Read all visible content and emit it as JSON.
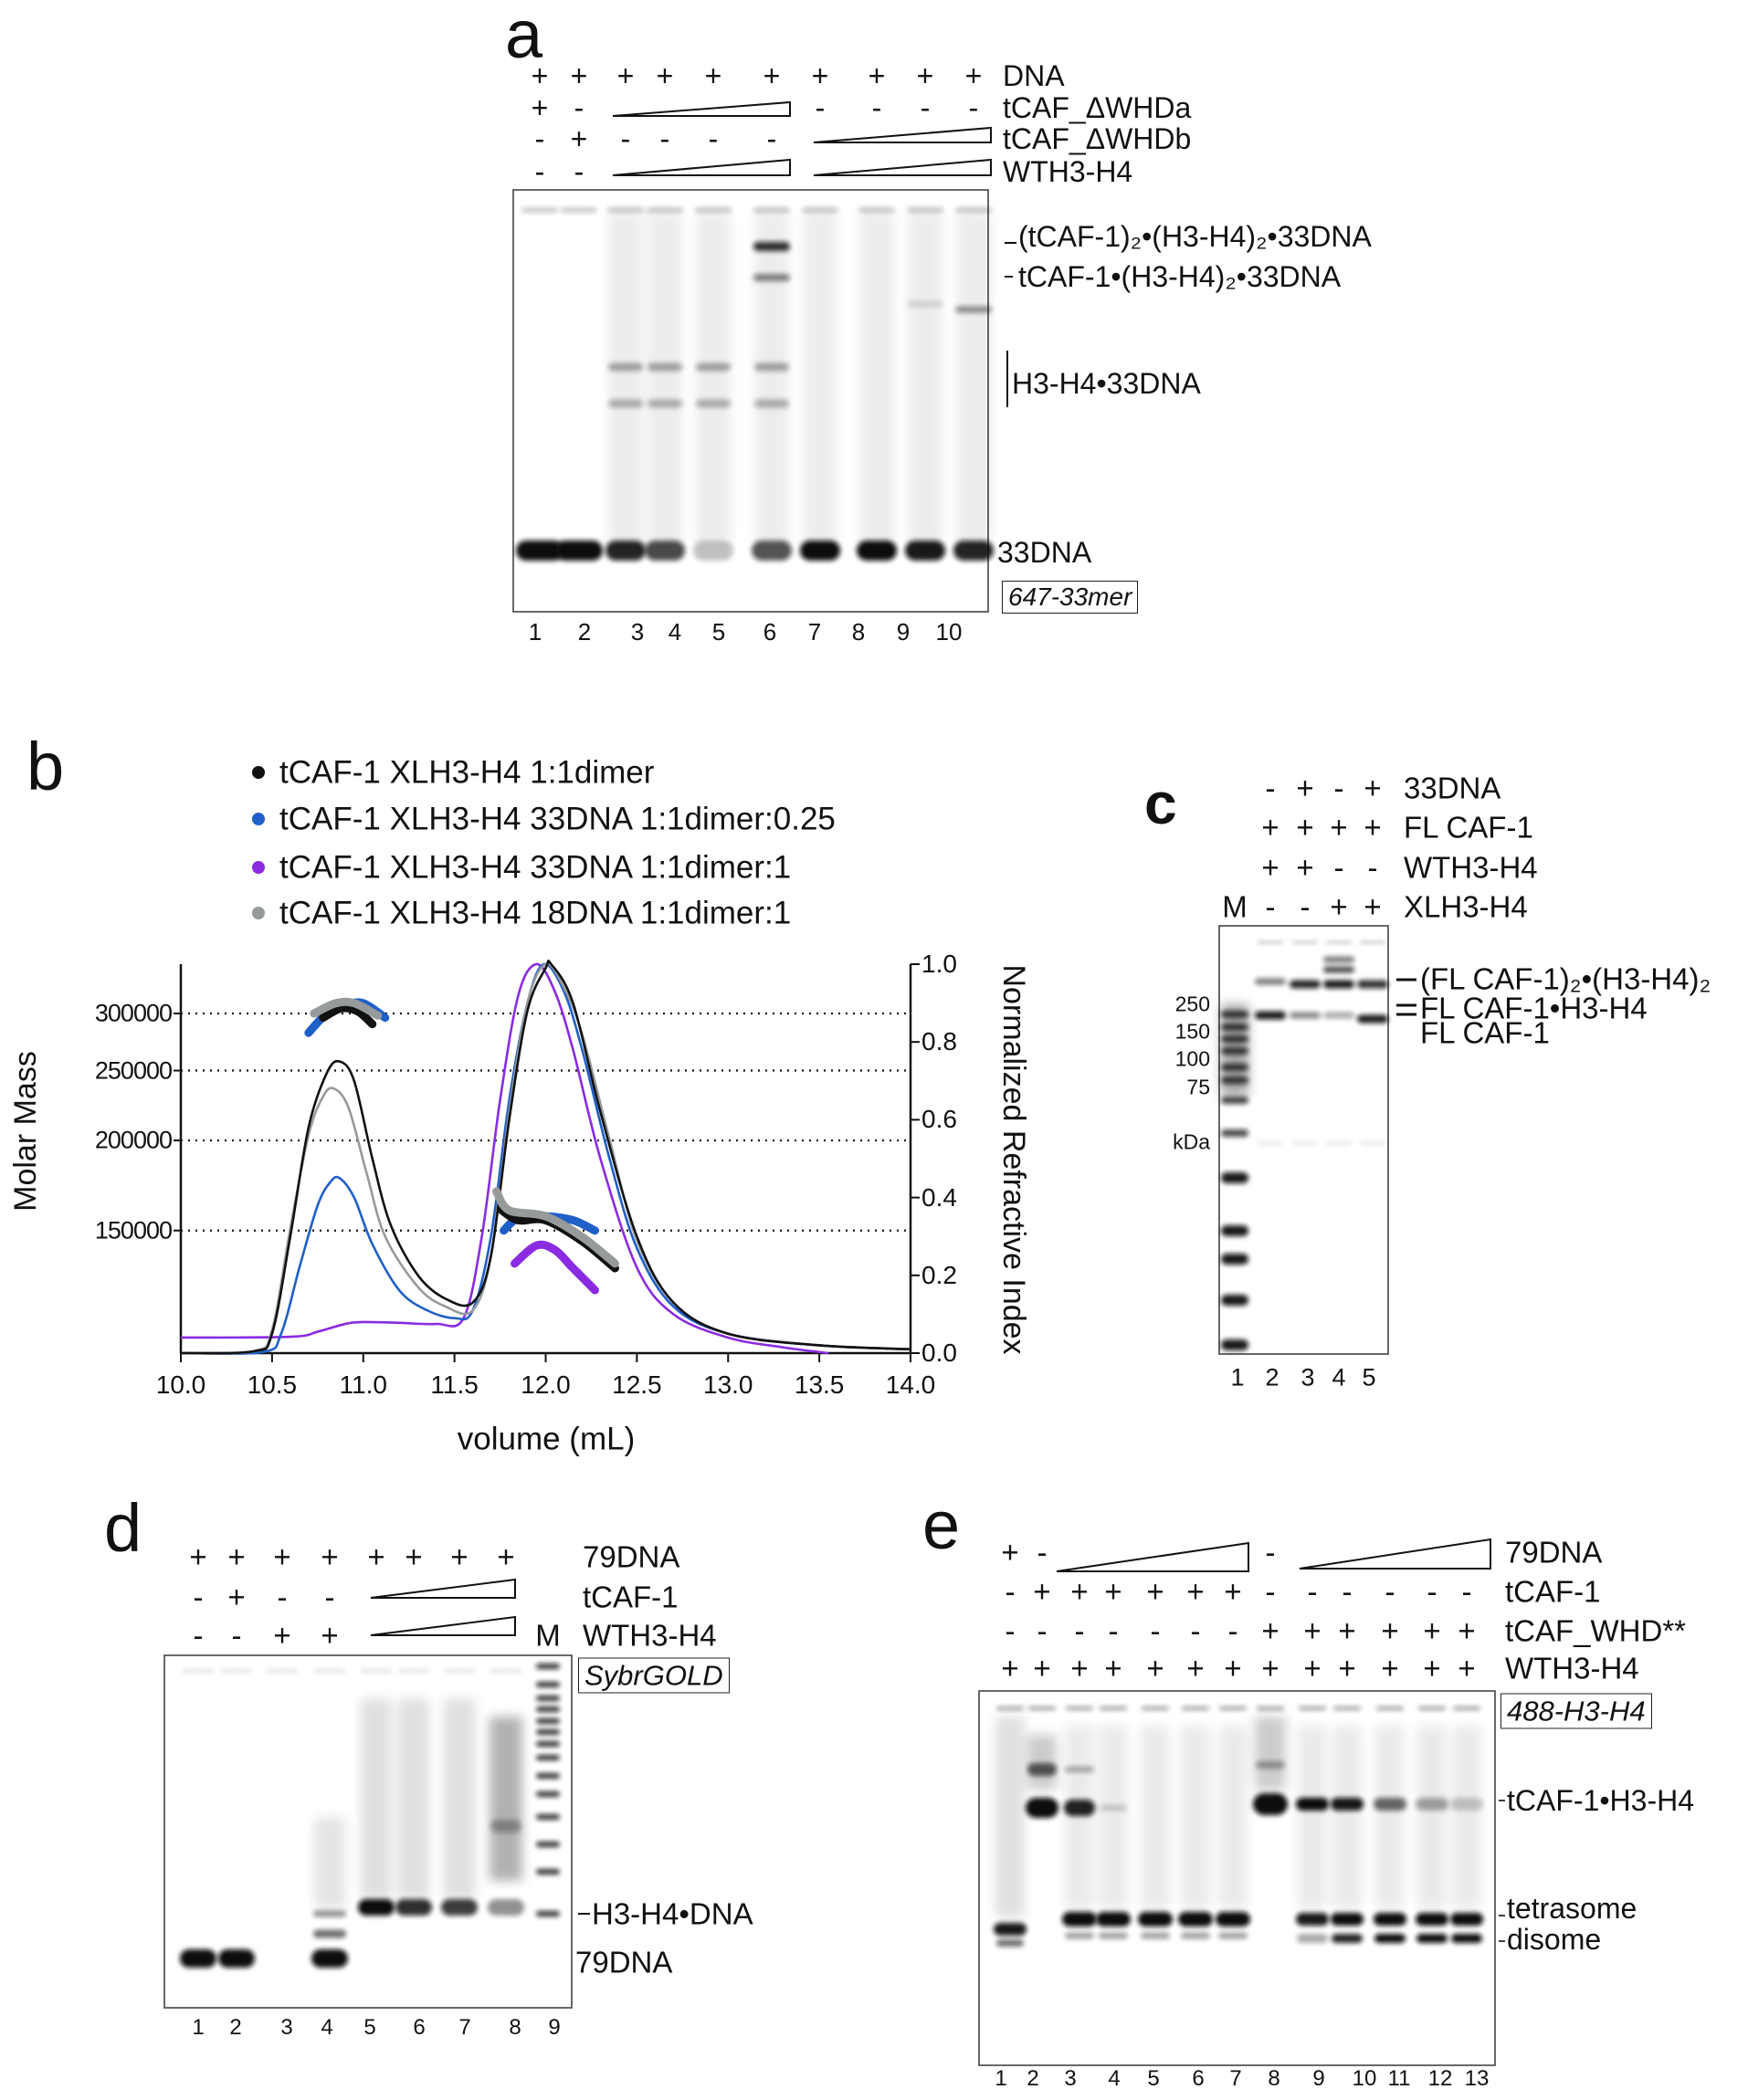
{
  "panels": {
    "a": {
      "letter": "a",
      "rows": [
        {
          "label": "DNA",
          "signs": [
            "+",
            "+",
            "+",
            "+",
            "+",
            "+",
            "+",
            "+",
            "+",
            "+"
          ]
        },
        {
          "label": "tCAF_ΔWHDa",
          "signs": [
            "+",
            "-",
            null,
            null,
            null,
            null,
            "-",
            "-",
            "-",
            "-"
          ]
        },
        {
          "label": "tCAF_ΔWHDb",
          "signs": [
            "-",
            "+",
            "-",
            "-",
            "-",
            "-",
            null,
            null,
            null,
            null
          ]
        },
        {
          "label": "WTH3-H4",
          "signs": [
            "-",
            "-",
            null,
            null,
            null,
            null,
            null,
            null,
            null,
            null
          ]
        }
      ],
      "wedges": [
        {
          "row": 1,
          "lanes": [
            3,
            6
          ]
        },
        {
          "row": 2,
          "lanes": [
            7,
            10
          ]
        },
        {
          "row": 3,
          "lanes": [
            3,
            6
          ]
        },
        {
          "row": 3,
          "lanes": [
            7,
            10
          ]
        }
      ],
      "lanes": [
        "1",
        "2",
        "3",
        "4",
        "5",
        "6",
        "7",
        "8",
        "9",
        "10"
      ],
      "band_labels": [
        "(tCAF-1)₂•(H3-H4)₂•33DNA",
        "tCAF-1•(H3-H4)₂•33DNA",
        "H3-H4•33DNA",
        "33DNA"
      ],
      "stain_label": "647-33mer"
    },
    "b": {
      "letter": "b",
      "legend": [
        {
          "label": "tCAF-1 XLH3-H4 1:1dimer",
          "color": "#111111"
        },
        {
          "label": "tCAF-1 XLH3-H4 33DNA 1:1dimer:0.25",
          "color": "#1f5fc8"
        },
        {
          "label": "tCAF-1 XLH3-H4 33DNA 1:1dimer:1",
          "color": "#8a2be2"
        },
        {
          "label": "tCAF-1 XLH3-H4 18DNA 1:1dimer:1",
          "color": "#969a9a"
        }
      ]
    },
    "c": {
      "letter": "c",
      "rows": [
        {
          "label": "33DNA",
          "signs": [
            null,
            "-",
            "+",
            "-",
            "+"
          ]
        },
        {
          "label": "FL CAF-1",
          "signs": [
            null,
            "+",
            "+",
            "+",
            "+"
          ]
        },
        {
          "label": "WTH3-H4",
          "signs": [
            null,
            "+",
            "+",
            "-",
            "-"
          ]
        },
        {
          "label": "XLH3-H4",
          "signs": [
            "M",
            "-",
            "-",
            "+",
            "+"
          ]
        }
      ],
      "lanes": [
        "1",
        "2",
        "3",
        "4",
        "5"
      ],
      "mw_markers": [
        "250",
        "150",
        "100",
        "75"
      ],
      "mw_unit": "kDa",
      "band_labels": [
        "(FL CAF-1)₂•(H3-H4)₂",
        "FL CAF-1•H3-H4",
        "FL CAF-1"
      ]
    },
    "d": {
      "letter": "d",
      "rows": [
        {
          "label": "79DNA",
          "signs": [
            "+",
            "+",
            "+",
            "+",
            "+",
            "+",
            "+",
            "+",
            null
          ]
        },
        {
          "label": "tCAF-1",
          "signs": [
            "-",
            "+",
            "-",
            "-",
            null,
            null,
            null,
            null,
            null
          ]
        },
        {
          "label": "WTH3-H4",
          "signs": [
            "-",
            "-",
            "+",
            "+",
            null,
            null,
            null,
            null,
            "M"
          ]
        }
      ],
      "wedges": [
        {
          "row": 1,
          "lanes": [
            5,
            8
          ]
        },
        {
          "row": 2,
          "lanes": [
            5,
            8
          ]
        }
      ],
      "lanes": [
        "1",
        "2",
        "3",
        "4",
        "5",
        "6",
        "7",
        "8",
        "9"
      ],
      "band_labels": [
        "H3-H4•DNA",
        "79DNA"
      ],
      "stain_label": "SybrGOLD"
    },
    "e": {
      "letter": "e",
      "rows": [
        {
          "label": "79DNA",
          "signs": [
            "+",
            "-",
            null,
            null,
            null,
            null,
            null,
            "-",
            null,
            null,
            null,
            null,
            null
          ]
        },
        {
          "label": "tCAF-1",
          "signs": [
            "-",
            "+",
            "+",
            "+",
            "+",
            "+",
            "+",
            "-",
            "-",
            "-",
            "-",
            "-",
            "-"
          ]
        },
        {
          "label": "tCAF_WHD**",
          "signs": [
            "-",
            "-",
            "-",
            "-",
            "-",
            "-",
            "-",
            "+",
            "+",
            "+",
            "+",
            "+",
            "+"
          ]
        },
        {
          "label": "WTH3-H4",
          "signs": [
            "+",
            "+",
            "+",
            "+",
            "+",
            "+",
            "+",
            "+",
            "+",
            "+",
            "+",
            "+",
            "+"
          ]
        }
      ],
      "wedges": [
        {
          "row": 0,
          "lanes": [
            3,
            7
          ]
        },
        {
          "row": 0,
          "lanes": [
            9,
            13
          ]
        }
      ],
      "lanes": [
        "1",
        "2",
        "3",
        "4",
        "5",
        "6",
        "7",
        "8",
        "9",
        "10",
        "11",
        "12",
        "13"
      ],
      "band_labels": [
        "tCAF-1•H3-H4",
        "tetrasome",
        "disome"
      ],
      "stain_label": "488-H3-H4"
    }
  },
  "chart_data": {
    "type": "line",
    "title": "",
    "xlabel": "volume (mL)",
    "ylabel": "Molar Mass",
    "y2label": "Normalized Refractive Index",
    "xlim": [
      10.0,
      14.0
    ],
    "y2lim": [
      0.0,
      1.0
    ],
    "y_scale": "log",
    "x_ticks": [
      "10.0",
      "10.5",
      "11.0",
      "11.5",
      "12.0",
      "12.5",
      "13.0",
      "13.5",
      "14.0"
    ],
    "y_ticks": [
      "300000",
      "250000",
      "200000",
      "150000"
    ],
    "y_tick_values": [
      300000,
      250000,
      200000,
      150000
    ],
    "y2_ticks": [
      "1.0",
      "0.8",
      "0.6",
      "0.4",
      "0.2",
      "0.0"
    ],
    "y2_tick_values": [
      1.0,
      0.8,
      0.6,
      0.4,
      0.2,
      0.0
    ],
    "grid": "dotted horizontal at molar mass ticks",
    "legend_position": "top",
    "series": [
      {
        "name": "tCAF-1 XLH3-H4 1:1dimer",
        "color": "#111111",
        "ri": [
          [
            10.0,
            0
          ],
          [
            10.4,
            0.005
          ],
          [
            10.5,
            0.05
          ],
          [
            10.6,
            0.3
          ],
          [
            10.7,
            0.58
          ],
          [
            10.8,
            0.72
          ],
          [
            10.87,
            0.75
          ],
          [
            10.95,
            0.7
          ],
          [
            11.05,
            0.5
          ],
          [
            11.15,
            0.33
          ],
          [
            11.3,
            0.2
          ],
          [
            11.45,
            0.14
          ],
          [
            11.6,
            0.13
          ],
          [
            11.7,
            0.25
          ],
          [
            11.8,
            0.6
          ],
          [
            11.9,
            0.88
          ],
          [
            12.0,
            0.99
          ],
          [
            12.03,
            1.0
          ],
          [
            12.15,
            0.9
          ],
          [
            12.3,
            0.62
          ],
          [
            12.5,
            0.3
          ],
          [
            12.7,
            0.13
          ],
          [
            13.0,
            0.05
          ],
          [
            13.5,
            0.02
          ],
          [
            14.0,
            0.01
          ]
        ],
        "mass": [
          [
            [
              10.78,
              296000
            ],
            [
              10.88,
              305000
            ],
            [
              10.97,
              302000
            ],
            [
              11.05,
              290000
            ]
          ],
          [
            [
              11.76,
              160000
            ],
            [
              11.85,
              155000
            ],
            [
              12.0,
              155000
            ],
            [
              12.2,
              145000
            ],
            [
              12.38,
              133000
            ]
          ]
        ]
      },
      {
        "name": "tCAF-1 XLH3-H4 33DNA 1:1dimer:0.25",
        "color": "#1f5fc8",
        "ri": [
          [
            10.0,
            0
          ],
          [
            10.45,
            0.003
          ],
          [
            10.55,
            0.05
          ],
          [
            10.65,
            0.22
          ],
          [
            10.75,
            0.38
          ],
          [
            10.82,
            0.44
          ],
          [
            10.87,
            0.45
          ],
          [
            10.95,
            0.4
          ],
          [
            11.05,
            0.28
          ],
          [
            11.2,
            0.16
          ],
          [
            11.35,
            0.11
          ],
          [
            11.5,
            0.09
          ],
          [
            11.6,
            0.11
          ],
          [
            11.7,
            0.3
          ],
          [
            11.8,
            0.65
          ],
          [
            11.9,
            0.9
          ],
          [
            11.99,
            1.0
          ],
          [
            12.1,
            0.93
          ],
          [
            12.2,
            0.78
          ],
          [
            12.35,
            0.5
          ],
          [
            12.5,
            0.27
          ],
          [
            12.7,
            0.12
          ],
          [
            13.0,
            0.05
          ],
          [
            13.5,
            0.02
          ],
          [
            14.0,
            0.01
          ]
        ],
        "mass": [
          [
            [
              10.7,
              282000
            ],
            [
              10.8,
              300000
            ],
            [
              10.9,
              308000
            ],
            [
              11.0,
              310000
            ],
            [
              11.12,
              296000
            ]
          ],
          [
            [
              11.77,
              150000
            ],
            [
              11.85,
              156000
            ],
            [
              12.0,
              157000
            ],
            [
              12.15,
              155000
            ],
            [
              12.27,
              150000
            ]
          ]
        ]
      },
      {
        "name": "tCAF-1 XLH3-H4 33DNA 1:1dimer:1",
        "color": "#8a2be2",
        "ri": [
          [
            10.0,
            0.04
          ],
          [
            10.6,
            0.042
          ],
          [
            10.75,
            0.055
          ],
          [
            10.9,
            0.075
          ],
          [
            11.0,
            0.08
          ],
          [
            11.2,
            0.078
          ],
          [
            11.4,
            0.075
          ],
          [
            11.55,
            0.09
          ],
          [
            11.65,
            0.3
          ],
          [
            11.75,
            0.65
          ],
          [
            11.85,
            0.92
          ],
          [
            11.95,
            1.0
          ],
          [
            12.05,
            0.93
          ],
          [
            12.15,
            0.78
          ],
          [
            12.3,
            0.5
          ],
          [
            12.5,
            0.22
          ],
          [
            12.7,
            0.1
          ],
          [
            13.0,
            0.04
          ],
          [
            13.3,
            0.015
          ],
          [
            13.55,
            0.0
          ]
        ],
        "mass": [
          [
            [
              11.83,
              135000
            ],
            [
              11.95,
              143000
            ],
            [
              12.05,
              141000
            ],
            [
              12.15,
              133000
            ],
            [
              12.27,
              124000
            ]
          ]
        ]
      },
      {
        "name": "tCAF-1 XLH3-H4 18DNA 1:1dimer:1",
        "color": "#969a9a",
        "ri": [
          [
            10.0,
            0
          ],
          [
            10.4,
            0.005
          ],
          [
            10.5,
            0.06
          ],
          [
            10.6,
            0.32
          ],
          [
            10.7,
            0.56
          ],
          [
            10.78,
            0.66
          ],
          [
            10.84,
            0.68
          ],
          [
            10.92,
            0.63
          ],
          [
            11.02,
            0.46
          ],
          [
            11.12,
            0.3
          ],
          [
            11.3,
            0.17
          ],
          [
            11.45,
            0.12
          ],
          [
            11.6,
            0.11
          ],
          [
            11.7,
            0.25
          ],
          [
            11.8,
            0.62
          ],
          [
            11.9,
            0.9
          ],
          [
            12.0,
            1.0
          ],
          [
            12.1,
            0.94
          ],
          [
            12.2,
            0.82
          ],
          [
            12.35,
            0.55
          ],
          [
            12.5,
            0.29
          ],
          [
            12.7,
            0.13
          ],
          [
            13.0,
            0.05
          ],
          [
            13.5,
            0.02
          ],
          [
            14.0,
            0.01
          ]
        ],
        "mass": [
          [
            [
              10.73,
              300000
            ],
            [
              10.85,
              310000
            ],
            [
              10.95,
              310000
            ],
            [
              11.08,
              298000
            ]
          ],
          [
            [
              11.73,
              170000
            ],
            [
              11.8,
              160000
            ],
            [
              12.0,
              157000
            ],
            [
              12.2,
              147000
            ],
            [
              12.38,
              135000
            ]
          ]
        ]
      }
    ]
  }
}
